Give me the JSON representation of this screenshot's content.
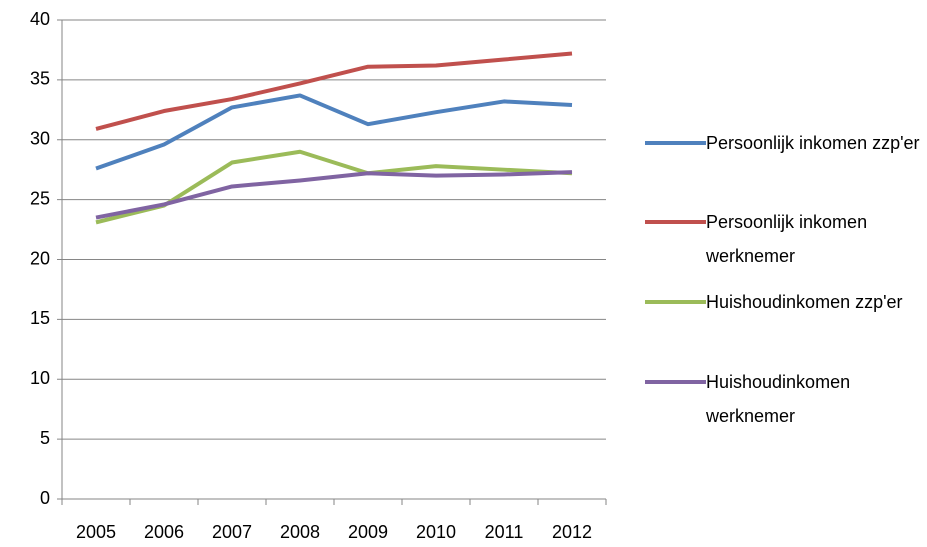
{
  "chart_data": {
    "type": "line",
    "categories": [
      "2005",
      "2006",
      "2007",
      "2008",
      "2009",
      "2010",
      "2011",
      "2012"
    ],
    "series": [
      {
        "name": "Persoonlijk inkomen zzp'er",
        "color": "#4f81bd",
        "values": [
          27.6,
          29.6,
          32.7,
          33.7,
          31.3,
          32.3,
          33.2,
          32.9
        ]
      },
      {
        "name": "Persoonlijk inkomen werknemer",
        "color": "#c0504d",
        "values": [
          30.9,
          32.4,
          33.4,
          34.7,
          36.1,
          36.2,
          36.7,
          37.2
        ]
      },
      {
        "name": "Huishoudinkomen zzp'er",
        "color": "#9bbb59",
        "values": [
          23.1,
          24.5,
          28.1,
          29.0,
          27.2,
          27.8,
          27.5,
          27.2
        ]
      },
      {
        "name": "Huishoudinkomen werknemer",
        "color": "#8064a2",
        "values": [
          23.5,
          24.6,
          26.1,
          26.6,
          27.2,
          27.0,
          27.1,
          27.3
        ]
      }
    ],
    "ylim": [
      0,
      40
    ],
    "yticks": [
      0,
      5,
      10,
      15,
      20,
      25,
      30,
      35,
      40
    ],
    "grid": true,
    "legend": "right"
  }
}
